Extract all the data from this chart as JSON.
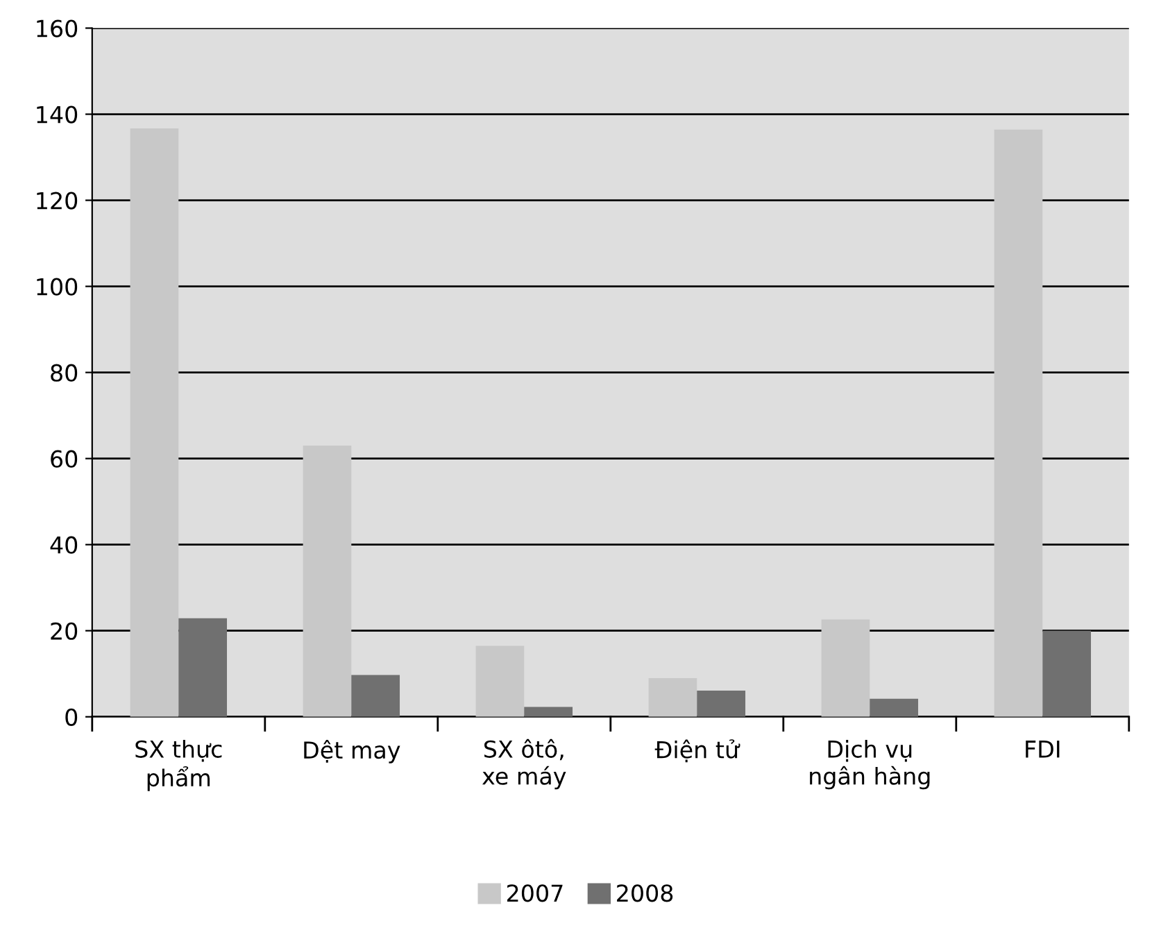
{
  "chart_data": {
    "type": "bar",
    "categories": [
      "SX thực\nphẩm",
      "Dệt may",
      "SX ôtô,\nxe máy",
      "Điện tử",
      "Dịch vụ\nngân hàng",
      "FDI"
    ],
    "series": [
      {
        "name": "2007",
        "color": "#c8c8c8",
        "values": [
          136.7,
          63,
          16.5,
          9,
          22.6,
          136.4
        ]
      },
      {
        "name": "2008",
        "color": "#707070",
        "values": [
          22.9,
          9.7,
          2.3,
          6.1,
          4.2,
          20
        ]
      }
    ],
    "ylim": [
      0,
      160
    ],
    "yticks": [
      0,
      20,
      40,
      60,
      80,
      100,
      120,
      140,
      160
    ],
    "grid": "y",
    "legend": "bottom"
  }
}
